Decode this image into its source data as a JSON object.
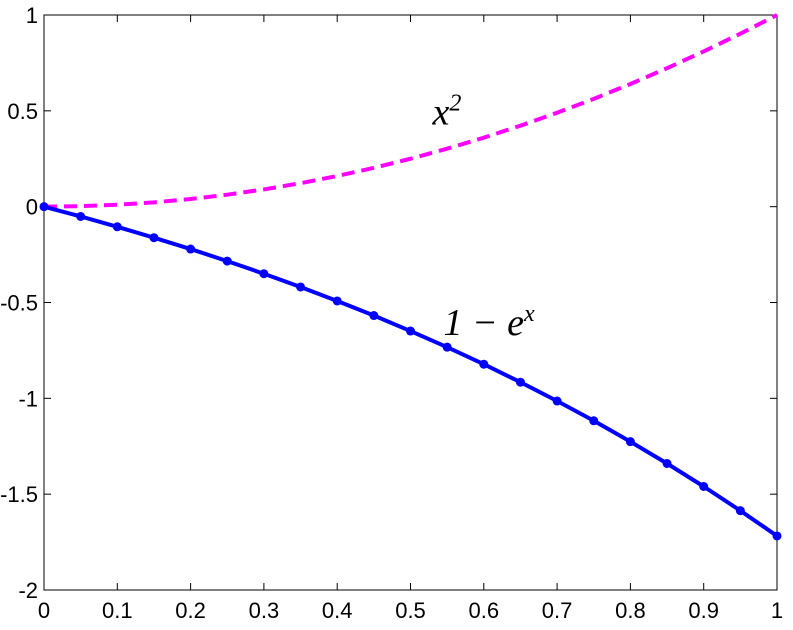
{
  "chart_data": {
    "type": "line",
    "xlim": [
      0,
      1
    ],
    "ylim": [
      -2,
      1
    ],
    "grid": false,
    "x_ticks": [
      "0",
      "0.1",
      "0.2",
      "0.3",
      "0.4",
      "0.5",
      "0.6",
      "0.7",
      "0.8",
      "0.9",
      "1"
    ],
    "y_ticks": [
      "1",
      "0.5",
      "0",
      "-0.5",
      "-1",
      "-1.5",
      "-2"
    ],
    "series": [
      {
        "style": "dashed",
        "color": "#ff00ff",
        "x": [
          0,
          0.05,
          0.1,
          0.15,
          0.2,
          0.25,
          0.3,
          0.35,
          0.4,
          0.45,
          0.5,
          0.55,
          0.6,
          0.65,
          0.7,
          0.75,
          0.8,
          0.85,
          0.9,
          0.95,
          1
        ],
        "y": [
          0,
          0.0025,
          0.01,
          0.0225,
          0.04,
          0.0625,
          0.09,
          0.1225,
          0.16,
          0.2025,
          0.25,
          0.3025,
          0.36,
          0.4225,
          0.49,
          0.5625,
          0.64,
          0.7225,
          0.81,
          0.9025,
          1
        ]
      },
      {
        "style": "solid-markers",
        "color": "#0000ff",
        "x": [
          0,
          0.05,
          0.1,
          0.15,
          0.2,
          0.25,
          0.3,
          0.35,
          0.4,
          0.45,
          0.5,
          0.55,
          0.6,
          0.65,
          0.7,
          0.75,
          0.8,
          0.85,
          0.9,
          0.95,
          1
        ],
        "y": [
          0,
          -0.051,
          -0.105,
          -0.162,
          -0.221,
          -0.284,
          -0.35,
          -0.419,
          -0.492,
          -0.568,
          -0.649,
          -0.733,
          -0.822,
          -0.916,
          -1.014,
          -1.117,
          -1.226,
          -1.34,
          -1.46,
          -1.586,
          -1.718
        ]
      }
    ],
    "annotations": [
      {
        "base": "x",
        "sup": "2",
        "x": 0.53,
        "y": 0.43
      },
      {
        "base": "1 − e",
        "sup": "x",
        "x": 0.545,
        "y": -0.67
      }
    ]
  }
}
